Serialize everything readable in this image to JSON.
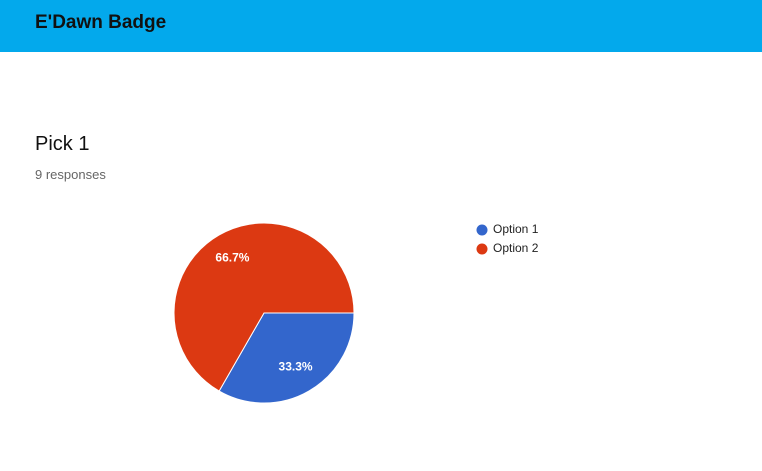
{
  "header": {
    "title": "E'Dawn Badge"
  },
  "question": {
    "title": "Pick 1",
    "responses": "9 responses"
  },
  "chart_data": {
    "type": "pie",
    "categories": [
      "Option 1",
      "Option 2"
    ],
    "values": [
      33.3,
      66.7
    ],
    "value_labels": [
      "33.3%",
      "66.7%"
    ],
    "colors": [
      "#3366cc",
      "#dc3912"
    ],
    "legend": "right"
  }
}
